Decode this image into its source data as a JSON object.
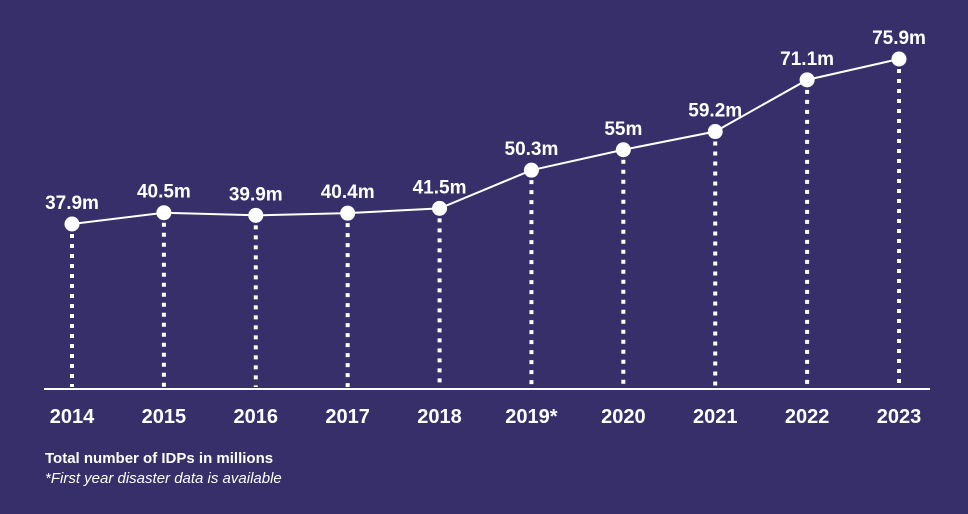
{
  "chart_data": {
    "type": "line",
    "categories": [
      "2014",
      "2015",
      "2016",
      "2017",
      "2018",
      "2019*",
      "2020",
      "2021",
      "2022",
      "2023"
    ],
    "values": [
      37.9,
      40.5,
      39.9,
      40.4,
      41.5,
      50.3,
      55,
      59.2,
      71.1,
      75.9
    ],
    "value_labels": [
      "37.9m",
      "40.5m",
      "39.9m",
      "40.4m",
      "41.5m",
      "50.3m",
      "55m",
      "59.2m",
      "71.1m",
      "75.9m"
    ],
    "title": "",
    "xlabel": "",
    "ylabel": "",
    "ylim": [
      0,
      80
    ],
    "grid": false,
    "caption": "Total number of IDPs in millions",
    "note": "*First year disaster data is available",
    "colors": {
      "background": "#372f69",
      "line": "#ffffff",
      "text": "#ffffff"
    }
  }
}
